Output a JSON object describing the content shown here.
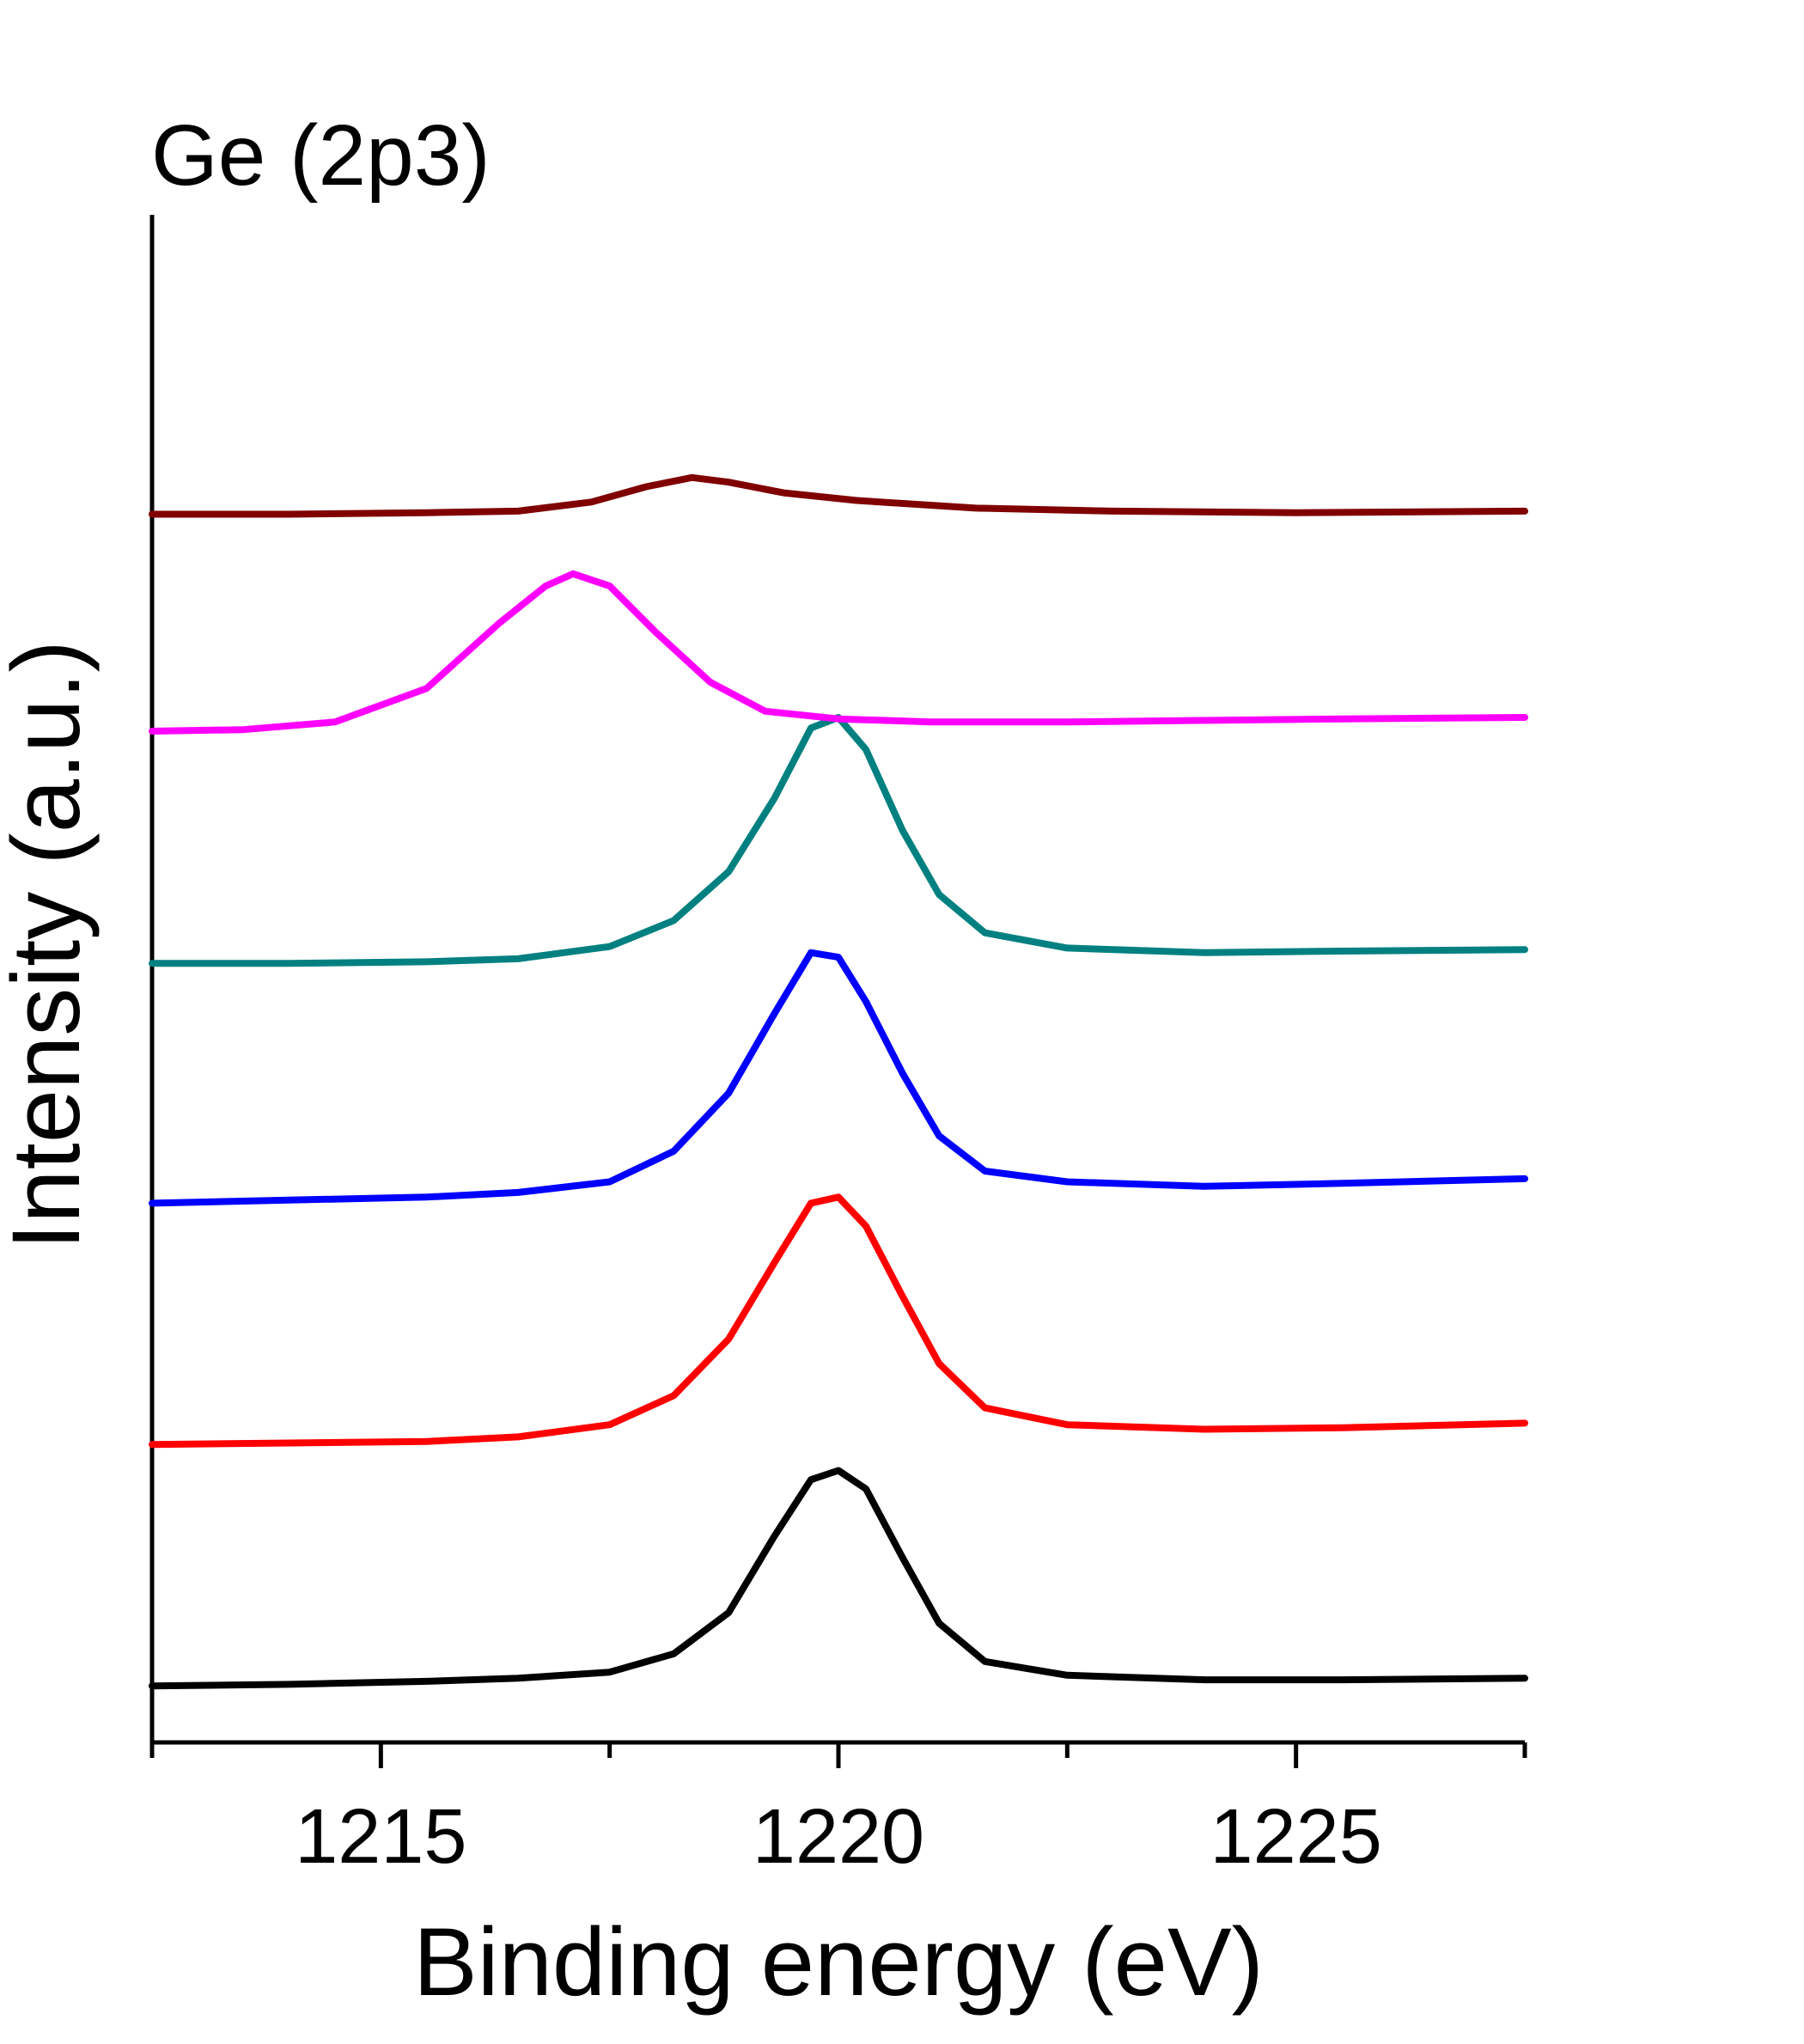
{
  "chart_data": {
    "type": "line",
    "title": "Ge (2p3)",
    "xlabel": "Binding energy (eV)",
    "ylabel": "Intensity (a.u.)",
    "xlim": [
      1212.5,
      1227.5
    ],
    "ylim": [
      0,
      1
    ],
    "x_ticks": [
      1215,
      1220,
      1225
    ],
    "x_tick_labels": [
      "1215",
      "1220",
      "1225"
    ],
    "y_ticks_shown": false,
    "grid": false,
    "legend": "none",
    "layout_note_stacked": true,
    "series": [
      {
        "color": "#000000",
        "points": [
          [
            1212.5,
            0.037
          ],
          [
            1214.0,
            0.038
          ],
          [
            1215.5,
            0.04
          ],
          [
            1216.5,
            0.042
          ],
          [
            1217.5,
            0.046
          ],
          [
            1218.2,
            0.058
          ],
          [
            1218.8,
            0.085
          ],
          [
            1219.3,
            0.135
          ],
          [
            1219.7,
            0.172
          ],
          [
            1220.0,
            0.178
          ],
          [
            1220.3,
            0.166
          ],
          [
            1220.7,
            0.121
          ],
          [
            1221.1,
            0.078
          ],
          [
            1221.6,
            0.053
          ],
          [
            1222.5,
            0.044
          ],
          [
            1224.0,
            0.041
          ],
          [
            1225.5,
            0.041
          ],
          [
            1227.5,
            0.042
          ]
        ]
      },
      {
        "color": "#ff0000",
        "points": [
          [
            1212.5,
            0.195
          ],
          [
            1214.0,
            0.196
          ],
          [
            1215.5,
            0.197
          ],
          [
            1216.5,
            0.2
          ],
          [
            1217.5,
            0.208
          ],
          [
            1218.2,
            0.227
          ],
          [
            1218.8,
            0.264
          ],
          [
            1219.3,
            0.314
          ],
          [
            1219.7,
            0.353
          ],
          [
            1220.0,
            0.357
          ],
          [
            1220.3,
            0.338
          ],
          [
            1220.7,
            0.292
          ],
          [
            1221.1,
            0.248
          ],
          [
            1221.6,
            0.219
          ],
          [
            1222.5,
            0.208
          ],
          [
            1224.0,
            0.205
          ],
          [
            1225.5,
            0.206
          ],
          [
            1227.5,
            0.209
          ]
        ]
      },
      {
        "color": "#0000ff",
        "points": [
          [
            1212.5,
            0.353
          ],
          [
            1214.0,
            0.355
          ],
          [
            1215.5,
            0.357
          ],
          [
            1216.5,
            0.36
          ],
          [
            1217.5,
            0.367
          ],
          [
            1218.2,
            0.387
          ],
          [
            1218.8,
            0.425
          ],
          [
            1219.3,
            0.477
          ],
          [
            1219.7,
            0.517
          ],
          [
            1220.0,
            0.514
          ],
          [
            1220.3,
            0.485
          ],
          [
            1220.7,
            0.438
          ],
          [
            1221.1,
            0.397
          ],
          [
            1221.6,
            0.374
          ],
          [
            1222.5,
            0.367
          ],
          [
            1224.0,
            0.364
          ],
          [
            1225.5,
            0.366
          ],
          [
            1227.5,
            0.369
          ]
        ]
      },
      {
        "color": "#008080",
        "points": [
          [
            1212.5,
            0.51
          ],
          [
            1214.0,
            0.51
          ],
          [
            1215.5,
            0.511
          ],
          [
            1216.5,
            0.513
          ],
          [
            1217.5,
            0.521
          ],
          [
            1218.2,
            0.538
          ],
          [
            1218.8,
            0.57
          ],
          [
            1219.3,
            0.618
          ],
          [
            1219.7,
            0.664
          ],
          [
            1220.0,
            0.671
          ],
          [
            1220.3,
            0.65
          ],
          [
            1220.7,
            0.597
          ],
          [
            1221.1,
            0.555
          ],
          [
            1221.6,
            0.53
          ],
          [
            1222.5,
            0.52
          ],
          [
            1224.0,
            0.517
          ],
          [
            1225.5,
            0.518
          ],
          [
            1227.5,
            0.519
          ]
        ]
      },
      {
        "color": "#ff00ff",
        "points": [
          [
            1212.5,
            0.662
          ],
          [
            1213.5,
            0.663
          ],
          [
            1214.5,
            0.668
          ],
          [
            1215.5,
            0.69
          ],
          [
            1216.3,
            0.733
          ],
          [
            1216.8,
            0.757
          ],
          [
            1217.1,
            0.765
          ],
          [
            1217.5,
            0.757
          ],
          [
            1218.0,
            0.727
          ],
          [
            1218.6,
            0.694
          ],
          [
            1219.2,
            0.675
          ],
          [
            1220.0,
            0.67
          ],
          [
            1221.0,
            0.668
          ],
          [
            1222.5,
            0.668
          ],
          [
            1224.0,
            0.669
          ],
          [
            1225.5,
            0.67
          ],
          [
            1227.5,
            0.671
          ]
        ]
      },
      {
        "color": "#800000",
        "points": [
          [
            1212.5,
            0.804
          ],
          [
            1214.0,
            0.804
          ],
          [
            1215.5,
            0.805
          ],
          [
            1216.5,
            0.806
          ],
          [
            1217.3,
            0.812
          ],
          [
            1217.9,
            0.822
          ],
          [
            1218.4,
            0.828
          ],
          [
            1218.8,
            0.825
          ],
          [
            1219.4,
            0.818
          ],
          [
            1220.2,
            0.813
          ],
          [
            1221.5,
            0.808
          ],
          [
            1223.0,
            0.806
          ],
          [
            1225.0,
            0.805
          ],
          [
            1227.5,
            0.806
          ]
        ]
      }
    ]
  }
}
